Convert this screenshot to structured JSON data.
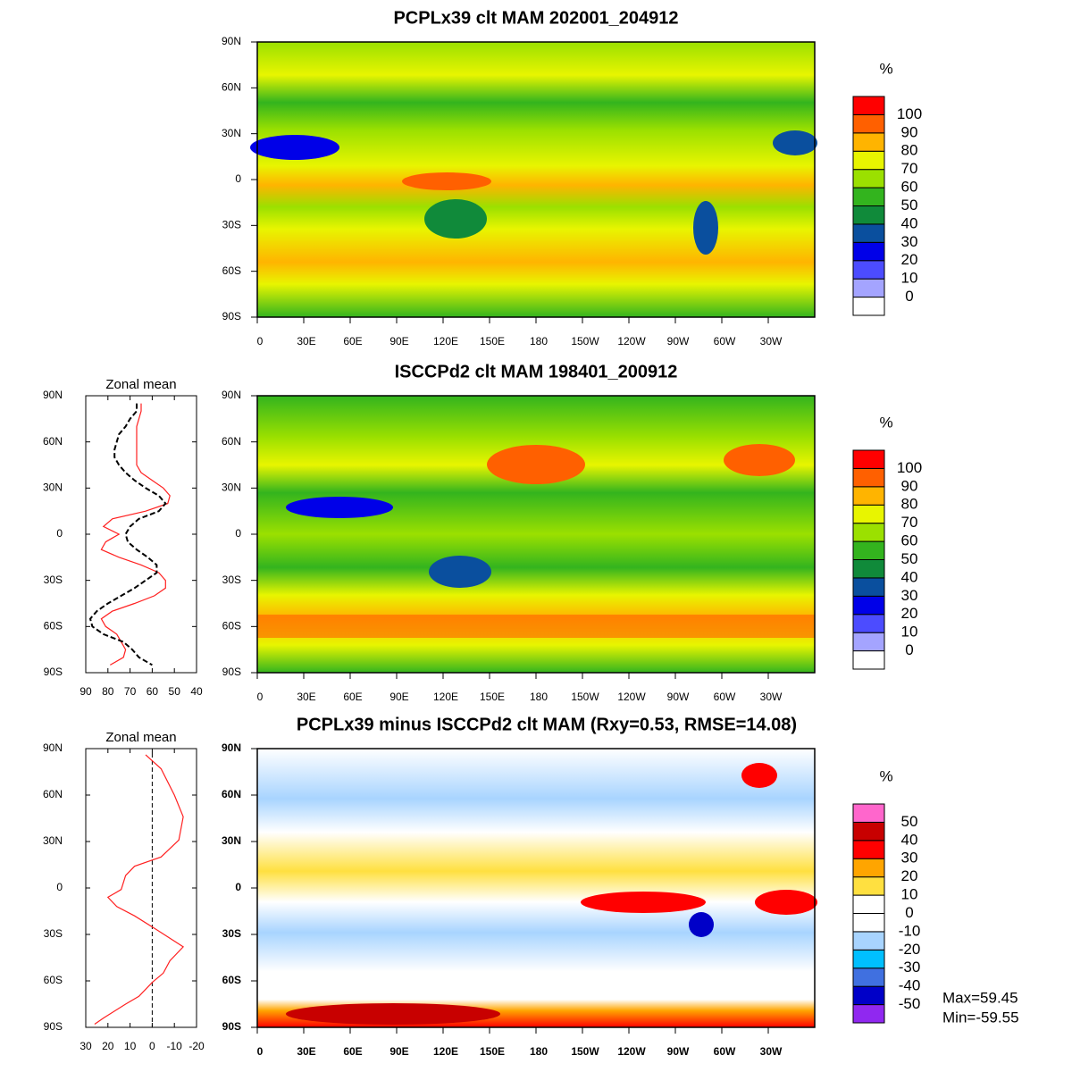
{
  "maps": [
    {
      "title": "PCPLx39 clt MAM 202001_204912",
      "xlim": [
        0,
        360
      ],
      "ylim": [
        -90,
        90
      ],
      "xticks": [
        0,
        {
          "value": 30,
          "label": "30E"
        },
        {
          "value": 60,
          "label": "60E"
        },
        {
          "value": 90,
          "label": "90E"
        },
        {
          "value": 120,
          "label": "120E"
        },
        {
          "value": 150,
          "label": "150E"
        },
        180,
        {
          "value": 210,
          "label": "150W"
        },
        {
          "value": 240,
          "label": "120W"
        },
        {
          "value": 270,
          "label": "90W"
        },
        {
          "value": 300,
          "label": "60W"
        },
        {
          "value": 330,
          "label": "30W"
        }
      ],
      "yticks": [
        {
          "value": 90,
          "label": "90N"
        },
        {
          "value": 60,
          "label": "60N"
        },
        {
          "value": 30,
          "label": "30N"
        },
        0,
        {
          "value": -30,
          "label": "30S"
        },
        {
          "value": -60,
          "label": "60S"
        },
        {
          "value": -90,
          "label": "90S"
        }
      ],
      "colorbar": {
        "title": "%",
        "levels": [
          0,
          10,
          20,
          30,
          40,
          50,
          60,
          70,
          80,
          90,
          100
        ],
        "colors": [
          "#ffffff",
          "#a4a4ff",
          "#4c4cff",
          "#0000e8",
          "#0a4f9e",
          "#108a3a",
          "#33b41e",
          "#9be000",
          "#e8f500",
          "#ffb400",
          "#ff6000",
          "#ff0000"
        ]
      }
    },
    {
      "title": "ISCCPd2 clt MAM 198401_200912",
      "xlim": [
        0,
        360
      ],
      "ylim": [
        -90,
        90
      ],
      "xticks": [
        0,
        {
          "value": 30,
          "label": "30E"
        },
        {
          "value": 60,
          "label": "60E"
        },
        {
          "value": 90,
          "label": "90E"
        },
        {
          "value": 120,
          "label": "120E"
        },
        {
          "value": 150,
          "label": "150E"
        },
        180,
        {
          "value": 210,
          "label": "150W"
        },
        {
          "value": 240,
          "label": "120W"
        },
        {
          "value": 270,
          "label": "90W"
        },
        {
          "value": 300,
          "label": "60W"
        },
        {
          "value": 330,
          "label": "30W"
        }
      ],
      "yticks": [
        {
          "value": 90,
          "label": "90N"
        },
        {
          "value": 60,
          "label": "60N"
        },
        {
          "value": 30,
          "label": "30N"
        },
        0,
        {
          "value": -30,
          "label": "30S"
        },
        {
          "value": -60,
          "label": "60S"
        },
        {
          "value": -90,
          "label": "90S"
        }
      ],
      "colorbar": {
        "title": "%",
        "levels": [
          0,
          10,
          20,
          30,
          40,
          50,
          60,
          70,
          80,
          90,
          100
        ],
        "colors": [
          "#ffffff",
          "#a4a4ff",
          "#4c4cff",
          "#0000e8",
          "#0a4f9e",
          "#108a3a",
          "#33b41e",
          "#9be000",
          "#e8f500",
          "#ffb400",
          "#ff6000",
          "#ff0000"
        ]
      }
    },
    {
      "title": "PCPLx39 minus ISCCPd2 clt MAM (Rxy=0.53, RMSE=14.08)",
      "xlim": [
        0,
        360
      ],
      "ylim": [
        -90,
        90
      ],
      "xticks": [
        0,
        {
          "value": 30,
          "label": "30E"
        },
        {
          "value": 60,
          "label": "60E"
        },
        {
          "value": 90,
          "label": "90E"
        },
        {
          "value": 120,
          "label": "120E"
        },
        {
          "value": 150,
          "label": "150E"
        },
        180,
        {
          "value": 210,
          "label": "150W"
        },
        {
          "value": 240,
          "label": "120W"
        },
        {
          "value": 270,
          "label": "90W"
        },
        {
          "value": 300,
          "label": "60W"
        },
        {
          "value": 330,
          "label": "30W"
        }
      ],
      "yticks": [
        {
          "value": 90,
          "label": "90N"
        },
        {
          "value": 60,
          "label": "60N"
        },
        {
          "value": 30,
          "label": "30N"
        },
        0,
        {
          "value": -30,
          "label": "30S"
        },
        {
          "value": -60,
          "label": "60S"
        },
        {
          "value": -90,
          "label": "90S"
        }
      ],
      "colorbar": {
        "title": "%",
        "levels": [
          -50,
          -40,
          -30,
          -20,
          -10,
          0,
          10,
          20,
          30,
          40,
          50
        ],
        "colors": [
          "#9028f0",
          "#0000c8",
          "#4070e0",
          "#00bfff",
          "#a8d4ff",
          "#ffffff",
          "#ffffff",
          "#ffe040",
          "#ffa500",
          "#ff0000",
          "#c80000",
          "#ff66cc"
        ]
      },
      "stats": [
        "Max=59.45",
        "Min=-59.55"
      ]
    }
  ],
  "chart_data": [
    {
      "type": "line",
      "title": "Zonal mean",
      "xlim": [
        90,
        40
      ],
      "xticks": [
        90,
        80,
        70,
        60,
        50,
        40
      ],
      "ylim": [
        -90,
        90
      ],
      "yticks": [
        {
          "value": 90,
          "label": "90N"
        },
        {
          "value": 60,
          "label": "60N"
        },
        {
          "value": 30,
          "label": "30N"
        },
        0,
        {
          "value": -30,
          "label": "30S"
        },
        {
          "value": -60,
          "label": "60S"
        },
        {
          "value": -90,
          "label": "90S"
        }
      ],
      "y": [
        85,
        80,
        75,
        70,
        65,
        60,
        55,
        50,
        45,
        40,
        35,
        30,
        25,
        20,
        15,
        10,
        5,
        0,
        -5,
        -10,
        -15,
        -20,
        -25,
        -30,
        -35,
        -40,
        -45,
        -50,
        -55,
        -60,
        -65,
        -70,
        -75,
        -80,
        -85
      ],
      "series": [
        {
          "color": "#ff2020",
          "dash": false,
          "values": [
            65,
            65,
            66,
            67,
            67,
            67,
            67,
            67,
            67,
            65,
            60,
            55,
            52,
            53,
            63,
            78,
            82,
            75,
            81,
            83,
            75,
            65,
            57,
            54,
            54,
            59,
            68,
            78,
            83,
            81,
            76,
            74,
            72,
            73,
            79
          ]
        },
        {
          "color": "#000000",
          "dash": true,
          "values": [
            67,
            67,
            70,
            72,
            75,
            76,
            77,
            77,
            75,
            72,
            68,
            63,
            57,
            54,
            57,
            66,
            70,
            72,
            71,
            67,
            62,
            58,
            58,
            63,
            68,
            74,
            80,
            85,
            88,
            87,
            82,
            73,
            69,
            66,
            60
          ]
        }
      ]
    },
    {
      "type": "line",
      "title": "Zonal mean",
      "xlim": [
        30,
        -20
      ],
      "xticks": [
        30,
        20,
        10,
        0,
        -10,
        -20
      ],
      "ylim": [
        -90,
        90
      ],
      "yticks": [
        {
          "value": 90,
          "label": "90N"
        },
        {
          "value": 60,
          "label": "60N"
        },
        {
          "value": 30,
          "label": "30N"
        },
        0,
        {
          "value": -30,
          "label": "30S"
        },
        {
          "value": -60,
          "label": "60S"
        },
        {
          "value": -90,
          "label": "90S"
        }
      ],
      "y": [
        86,
        77,
        60,
        46,
        31,
        20,
        14,
        8,
        -1,
        -6,
        -12,
        -18,
        -27,
        -38,
        -47,
        -55,
        -61,
        -70,
        -75,
        -84,
        -88
      ],
      "series": [
        {
          "color": "#ff2020",
          "dash": false,
          "values": [
            3,
            -4,
            -10,
            -14,
            -12,
            -4,
            8,
            12,
            14,
            20,
            16,
            8,
            -2,
            -14,
            -8,
            -5,
            0,
            6,
            12,
            22,
            26
          ]
        }
      ]
    }
  ]
}
